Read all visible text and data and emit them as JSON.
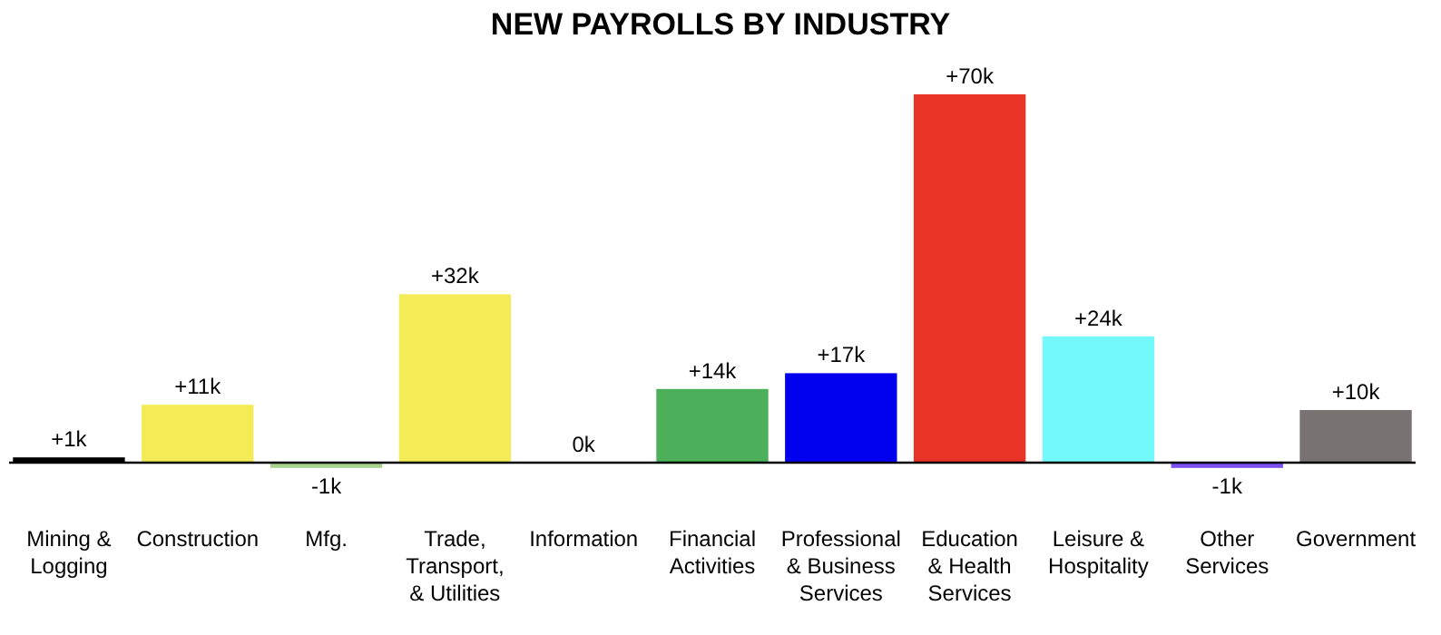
{
  "chart_data": {
    "type": "bar",
    "title": "NEW PAYROLLS BY INDUSTRY",
    "categories": [
      "Mining &\nLogging",
      "Construction",
      "Mfg.",
      "Trade,\nTransport,\n& Utilities",
      "Information",
      "Financial\nActivities",
      "Professional\n& Business\nServices",
      "Education\n& Health\nServices",
      "Leisure &\nHospitality",
      "Other\nServices",
      "Government"
    ],
    "values": [
      1,
      11,
      -1,
      32,
      0,
      14,
      17,
      70,
      24,
      -1,
      10
    ],
    "colors": [
      "#000000",
      "#f3ec57",
      "#a9d18e",
      "#f3ec57",
      "#999999",
      "#4caf5a",
      "#0000ee",
      "#e83426",
      "#73f8fc",
      "#7b4ff0",
      "#787272"
    ],
    "value_labels": [
      "+1k",
      "+11k",
      "-1k",
      "+32k",
      "0k",
      "+14k",
      "+17k",
      "+70k",
      "+24k",
      "-1k",
      "+10k"
    ]
  }
}
